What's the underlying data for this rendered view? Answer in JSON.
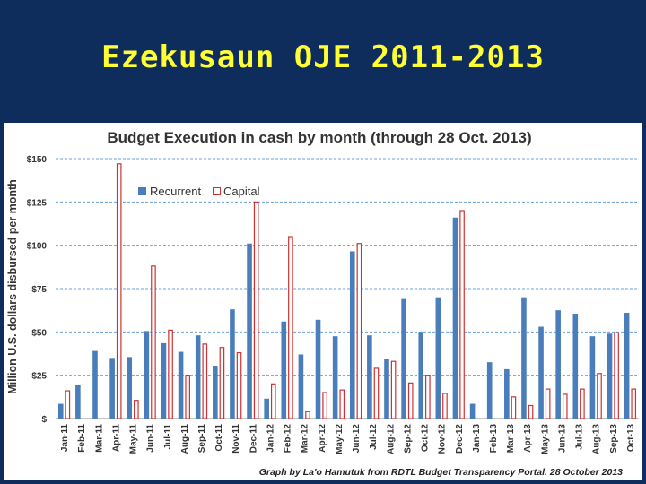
{
  "slide": {
    "title": "Ezekusaun OJE 2011-2013"
  },
  "chart_data": {
    "type": "bar",
    "title": "Budget Execution in cash by month (through 28 Oct. 2013)",
    "ylabel": "Million U.S. dollars disbursed per month",
    "xlabel": "",
    "ylim": [
      0,
      150
    ],
    "yticks": [
      0,
      25,
      50,
      75,
      100,
      125,
      150
    ],
    "ytick_labels": [
      "$",
      "$25",
      "$50",
      "$75",
      "$100",
      "$125",
      "$150"
    ],
    "grid": true,
    "legend_position": "top-left",
    "credit": "Graph by La'o Hamutuk from RDTL Budget Transparency Portal.  28 October 2013",
    "categories": [
      "Jan-11",
      "Feb-11",
      "Mar-11",
      "Apr-11",
      "May-11",
      "Jun-11",
      "Jul-11",
      "Aug-11",
      "Sep-11",
      "Oct-11",
      "Nov-11",
      "Dec-11",
      "Jan-12",
      "Feb-12",
      "Mar-12",
      "Apr-12",
      "May-12",
      "Jun-12",
      "Jul-12",
      "Aug-12",
      "Sep-12",
      "Oct-12",
      "Nov-12",
      "Dec-12",
      "Jan-13",
      "Feb-13",
      "Mar-13",
      "Apr-13",
      "May-13",
      "Jun-13",
      "Jul-13",
      "Aug-13",
      "Sep-13",
      "Oct-13"
    ],
    "series": [
      {
        "name": "Recurrent",
        "color": "#4a7ebb",
        "style": "filled",
        "values": [
          8.5,
          19.5,
          39,
          35,
          35.5,
          50.5,
          43.5,
          38.5,
          48,
          30.5,
          63,
          101,
          11.5,
          56,
          37,
          57,
          47.5,
          96.5,
          48,
          34.5,
          69,
          50,
          70,
          116,
          8.5,
          32.5,
          28.5,
          70,
          53,
          62.5,
          60.5,
          47.5,
          49,
          61
        ]
      },
      {
        "name": "Capital",
        "color": "#d03030",
        "style": "outline",
        "values": [
          16,
          0,
          0,
          147,
          10.5,
          88,
          51,
          25,
          43,
          41,
          38,
          125,
          20,
          105,
          4,
          15,
          16.5,
          101,
          29,
          33,
          20.5,
          25,
          14.5,
          120,
          0,
          0,
          12.5,
          7.5,
          17,
          14,
          17,
          26,
          49.5,
          17
        ]
      }
    ]
  }
}
